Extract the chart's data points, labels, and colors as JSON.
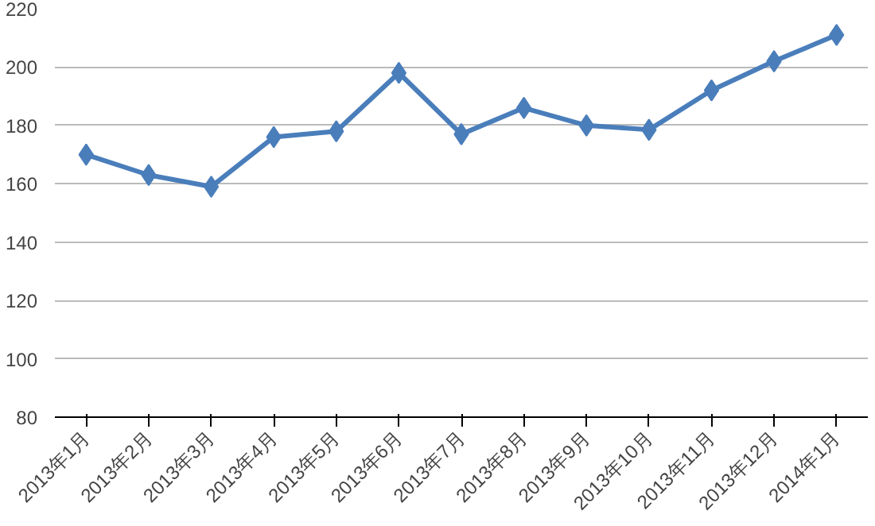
{
  "chart_data": {
    "type": "line",
    "categories": [
      "2013年1月",
      "2013年2月",
      "2013年3月",
      "2013年4月",
      "2013年5月",
      "2013年6月",
      "2013年7月",
      "2013年8月",
      "2013年9月",
      "2013年10月",
      "2013年11月",
      "2013年12月",
      "2014年1月"
    ],
    "series": [
      {
        "color": "#4a7ebb",
        "values": [
          170,
          163,
          159,
          176,
          178,
          198,
          177,
          186,
          180,
          178.5,
          192,
          202,
          211
        ]
      }
    ],
    "ylim": [
      80,
      220
    ],
    "yticks": [
      80,
      100,
      120,
      140,
      160,
      180,
      200,
      220
    ],
    "grid": "y",
    "marker": "diamond",
    "line_style": "solid"
  }
}
